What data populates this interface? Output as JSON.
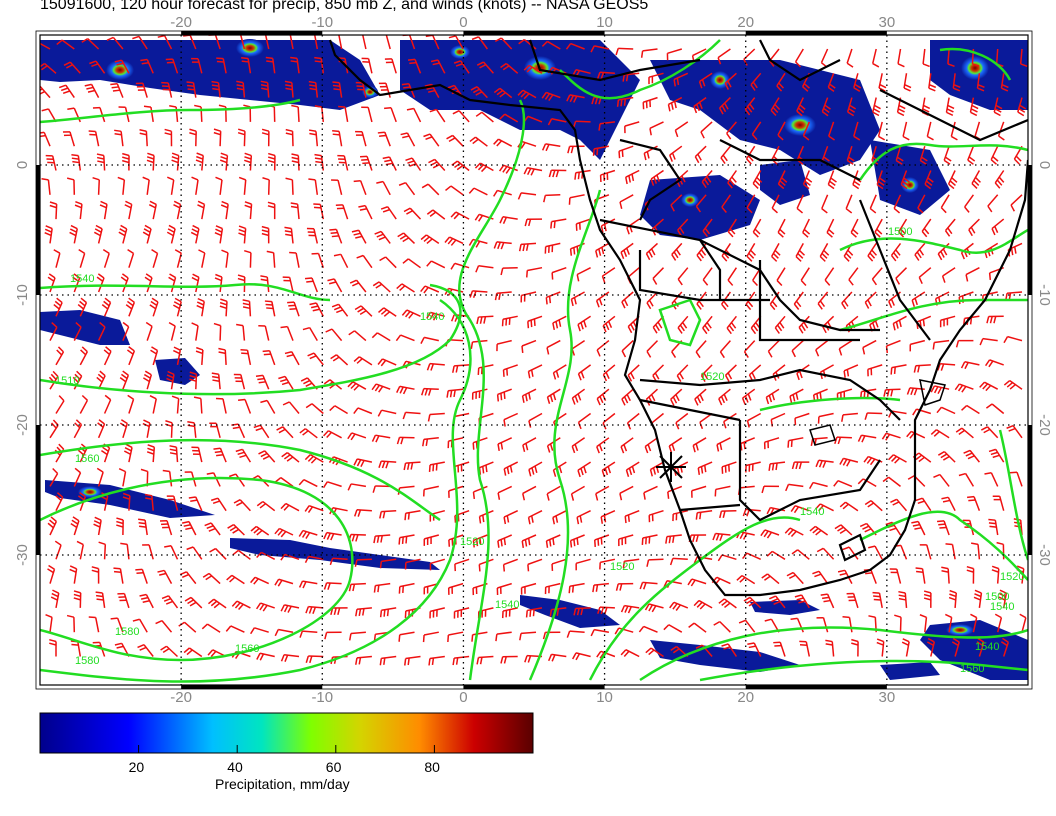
{
  "title": "15091600, 120 hour forecast for precip, 850 mb Z, and winds (knots) -- NASA GEOS5",
  "map": {
    "lon_range": [
      -30,
      40
    ],
    "lat_range": [
      -40,
      10
    ],
    "lon_ticks": [
      "-20",
      "-10",
      "0",
      "10",
      "20",
      "30"
    ],
    "lat_ticks": [
      "0",
      "-10",
      "-20",
      "-30"
    ],
    "contour_labels": [
      "1540",
      "1540",
      "1510",
      "1560",
      "1580",
      "1580",
      "1560",
      "1540",
      "1520",
      "1520",
      "1520",
      "1500",
      "1540",
      "1540",
      "1560",
      "1540",
      "1500",
      "1520"
    ],
    "colors": {
      "precip_low": "#0a1a9a",
      "contour": "#22dd22",
      "wind": "#ee1111",
      "coast": "#000000"
    }
  },
  "colorbar": {
    "title": "Precipitation, mm/day",
    "ticks": [
      "20",
      "40",
      "60",
      "80"
    ],
    "range": [
      0,
      100
    ],
    "colors": [
      "#00008b",
      "#0000ff",
      "#00bfff",
      "#00e5c0",
      "#7fff00",
      "#d4d400",
      "#ff8c00",
      "#cc0000",
      "#5a0000"
    ]
  }
}
